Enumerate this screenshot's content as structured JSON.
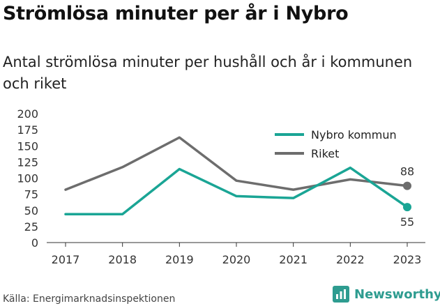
{
  "title": "Strömlösa minuter per år i Nybro",
  "subtitle": "Antal strömlösa minuter per hushåll och år i kommunen och riket",
  "source": "Källa: Energimarknadsinspektionen",
  "brand": "Newsworthy",
  "colors": {
    "nybro": "#1aa595",
    "riket": "#6d6d6d",
    "brand": "#2e9c90"
  },
  "chart_data": {
    "type": "line",
    "x": [
      "2017",
      "2018",
      "2019",
      "2020",
      "2021",
      "2022",
      "2023"
    ],
    "ylim": [
      0,
      200
    ],
    "yticks": [
      0,
      25,
      50,
      75,
      100,
      125,
      150,
      175,
      200
    ],
    "grid": false,
    "legend": "top-right",
    "series": [
      {
        "name": "Nybro kommun",
        "values": [
          44,
          44,
          114,
          72,
          69,
          116,
          55
        ],
        "end_label": "55"
      },
      {
        "name": "Riket",
        "values": [
          82,
          117,
          163,
          96,
          82,
          98,
          88
        ],
        "end_label": "88"
      }
    ]
  }
}
